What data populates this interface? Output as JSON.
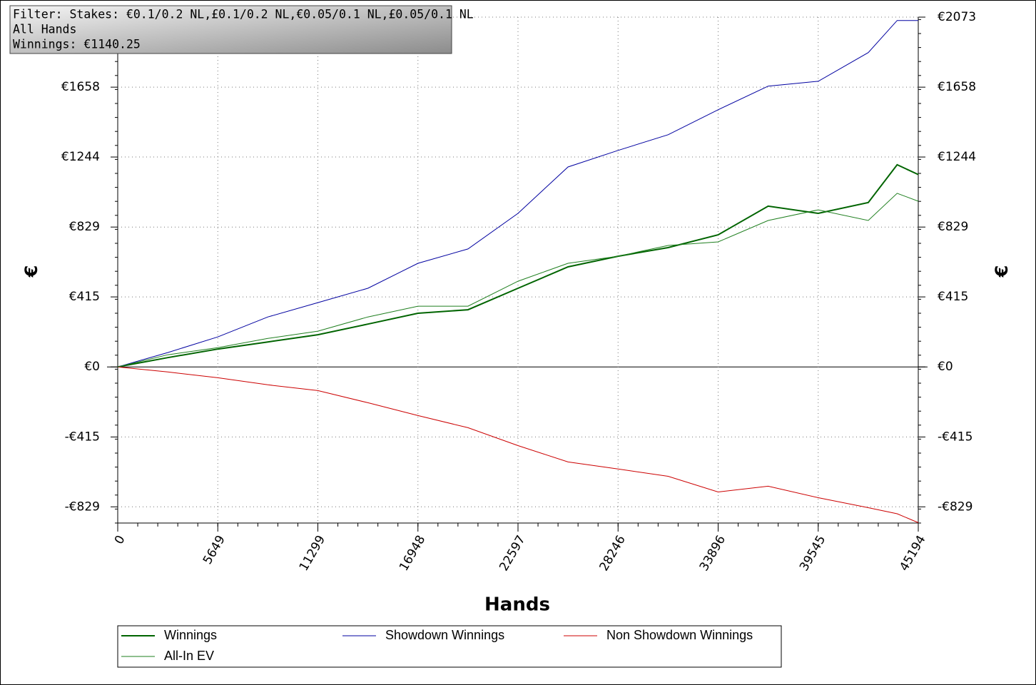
{
  "chart_data": {
    "type": "line",
    "annotations": [
      "Filter: Stakes: €0.1/0.2 NL,£0.1/0.2 NL,€0.05/0.1 NL,£0.05/0.1 NL",
      "All Hands",
      "Winnings: €1140.25"
    ],
    "xlabel": "Hands",
    "ylabel": "€",
    "x": [
      0,
      2825,
      5649,
      8474,
      11299,
      14124,
      16948,
      19773,
      22597,
      25422,
      28246,
      31071,
      33896,
      36720,
      39545,
      42370,
      44000,
      45194
    ],
    "series": [
      {
        "name": "Winnings",
        "color": "#006400",
        "values": [
          0,
          55,
          106,
          148,
          191,
          254,
          318,
          339,
          466,
          593,
          656,
          707,
          783,
          953,
          910,
          974,
          1198,
          1140
        ]
      },
      {
        "name": "Showdown Winnings",
        "color": "#0000a0",
        "values": [
          0,
          85,
          178,
          296,
          381,
          466,
          614,
          699,
          910,
          1185,
          1283,
          1376,
          1524,
          1664,
          1693,
          1863,
          2053,
          2053
        ]
      },
      {
        "name": "Non Showdown Winnings",
        "color": "#cc0000",
        "values": [
          0,
          -30,
          -64,
          -106,
          -140,
          -212,
          -288,
          -360,
          -466,
          -563,
          -605,
          -648,
          -741,
          -707,
          -775,
          -834,
          -870,
          -923
        ]
      },
      {
        "name": "All-In EV",
        "color": "#1f7f1f",
        "values": [
          0,
          72,
          114,
          169,
          212,
          296,
          360,
          360,
          508,
          614,
          656,
          720,
          741,
          868,
          931,
          868,
          1029,
          982
        ]
      }
    ],
    "xlim": [
      0,
      45194
    ],
    "xticks": [
      0,
      5649,
      11299,
      16948,
      22597,
      28246,
      33896,
      39545,
      45194
    ],
    "ylim": [
      -925,
      2073
    ],
    "yticks": [
      {
        "value": 2073,
        "label": "€2073"
      },
      {
        "value": 1658,
        "label": "€1658"
      },
      {
        "value": 1244,
        "label": "€1244"
      },
      {
        "value": 829,
        "label": "€829"
      },
      {
        "value": 415,
        "label": "€415"
      },
      {
        "value": 0,
        "label": "€0"
      },
      {
        "value": -415,
        "label": "-€415"
      },
      {
        "value": -829,
        "label": "-€829"
      }
    ],
    "grid": true
  }
}
